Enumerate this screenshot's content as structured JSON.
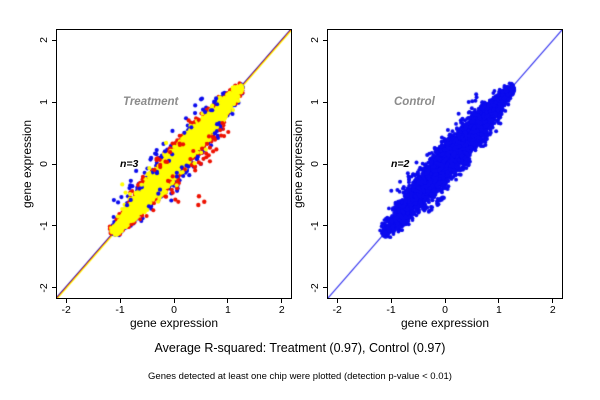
{
  "colors": {
    "background": "#ffffff",
    "axis": "#000000",
    "blue": "#0b0bee",
    "red": "#ee1100",
    "yellow": "#ffff00",
    "label_gray": "#8c8c8c"
  },
  "captions": {
    "rsq": "Average R-squared: Treatment (0.97), Control (0.97)",
    "note": "Genes detected at least one chip were plotted (detection p-value < 0.01)"
  },
  "chart_data": [
    {
      "type": "scatter",
      "panel": "left",
      "title": "Treatment",
      "n_label": "n=3",
      "r_squared": 0.97,
      "xlabel": "gene expression",
      "ylabel": "gene expression",
      "xlim": [
        -2.17,
        2.17
      ],
      "ylim": [
        -2.17,
        2.17
      ],
      "xticks": [
        -2,
        -1,
        0,
        1,
        2
      ],
      "yticks": [
        -2,
        -1,
        0,
        1,
        2
      ],
      "grid": false,
      "legend": null,
      "seed": 1337,
      "identity_line": {
        "slope": 1,
        "intercept": 0,
        "colors": [
          "#0000cc",
          "#ee1100",
          "#ffff00"
        ]
      },
      "series": [
        {
          "name": "chip-blue",
          "color": "#0b0bee",
          "count": 1600,
          "t_range": [
            -1.15,
            1.27
          ],
          "perp_sd": 0.105,
          "radius": 2.0
        },
        {
          "name": "chip-red",
          "color": "#ee1100",
          "count": 1600,
          "t_range": [
            -1.15,
            1.27
          ],
          "perp_sd": 0.105,
          "radius": 2.0
        },
        {
          "name": "chip-yellow",
          "color": "#ffff00",
          "count": 3300,
          "t_range": [
            -1.13,
            1.26
          ],
          "perp_sd": 0.082,
          "radius": 2.0
        }
      ],
      "outliers": [
        {
          "color": "#0b0bee",
          "count": 40,
          "t_range": [
            -0.85,
            0.95
          ],
          "d_range": [
            0.1,
            0.42
          ],
          "radius": 2.1
        },
        {
          "color": "#0b0bee",
          "count": 28,
          "t_range": [
            -0.6,
            0.95
          ],
          "d_range": [
            -0.42,
            -0.1
          ],
          "radius": 2.1
        },
        {
          "color": "#ee1100",
          "count": 34,
          "t_range": [
            -0.35,
            0.85
          ],
          "d_range": [
            -0.5,
            -0.1
          ],
          "radius": 2.1
        },
        {
          "color": "#ee1100",
          "count": 16,
          "t_range": [
            -0.55,
            0.75
          ],
          "d_range": [
            0.1,
            0.32
          ],
          "radius": 2.1
        },
        {
          "color": "#ee1100",
          "count": 3,
          "t_range": [
            -0.12,
            0.1
          ],
          "d_range": [
            -0.95,
            -0.65
          ],
          "radius": 2.2
        },
        {
          "color": "#ffff00",
          "count": 7,
          "t_range": [
            -0.75,
            0.35
          ],
          "d_range": [
            0.15,
            0.45
          ],
          "radius": 2.1
        },
        {
          "color": "#ffff00",
          "count": 5,
          "t_range": [
            -0.3,
            0.5
          ],
          "d_range": [
            -0.4,
            -0.15
          ],
          "radius": 2.1
        }
      ]
    },
    {
      "type": "scatter",
      "panel": "right",
      "title": "Control",
      "n_label": "n=2",
      "r_squared": 0.97,
      "xlabel": "gene expression",
      "ylabel": "gene expression",
      "xlim": [
        -2.17,
        2.17
      ],
      "ylim": [
        -2.17,
        2.17
      ],
      "xticks": [
        -2,
        -1,
        0,
        1,
        2
      ],
      "yticks": [
        -2,
        -1,
        0,
        1,
        2
      ],
      "grid": false,
      "legend": null,
      "seed": 2024,
      "identity_line": {
        "slope": 1,
        "intercept": 0,
        "colors": [
          "#2222ee"
        ]
      },
      "series": [
        {
          "name": "chips-blue",
          "color": "#0b0bee",
          "count": 4300,
          "t_range": [
            -1.15,
            1.27
          ],
          "perp_sd": 0.115,
          "radius": 1.9
        }
      ],
      "outliers": [
        {
          "color": "#0b0bee",
          "count": 55,
          "t_range": [
            -0.75,
            0.95
          ],
          "d_range": [
            0.1,
            0.4
          ],
          "radius": 2.0
        },
        {
          "color": "#0b0bee",
          "count": 30,
          "t_range": [
            -0.55,
            0.85
          ],
          "d_range": [
            -0.35,
            -0.1
          ],
          "radius": 2.0
        },
        {
          "color": "#0b0bee",
          "count": 14,
          "t_range": [
            -0.55,
            -0.28
          ],
          "d_range": [
            -0.38,
            -0.32
          ],
          "radius": 2.0
        }
      ]
    }
  ]
}
